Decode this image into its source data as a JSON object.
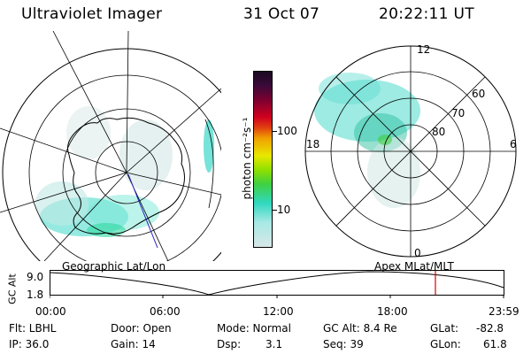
{
  "header": {
    "instrument": "Ultraviolet Imager",
    "date": "31 Oct 07",
    "time": "20:22:11 UT"
  },
  "colorbar": {
    "unit_label": "photon cm⁻²s⁻¹",
    "ticks": [
      "100",
      "10"
    ]
  },
  "polar_plot": {
    "mlt_labels": [
      "12",
      "18",
      "6",
      "0"
    ],
    "mlat_labels": [
      "60",
      "70",
      "80"
    ]
  },
  "map_captions": {
    "left": "Geographic Lat/Lon",
    "right": "Apex  MLat/MLT"
  },
  "altitude_strip": {
    "axis_label": "GC Alt",
    "y_ticks": [
      "9.0",
      "1.8"
    ],
    "time_ticks": [
      "00:00",
      "06:00",
      "12:00",
      "18:00",
      "23:59"
    ]
  },
  "info": {
    "filter": "Flt: LBHL",
    "ip": "IP: 36.0",
    "door": "Door: Open",
    "gain": "Gain: 14",
    "mode": "Mode: Normal",
    "dsp_label": "Dsp:",
    "dsp_value": "3.1",
    "gc_alt": "GC Alt: 8.4 Re",
    "seq": "Seq: 39",
    "glat_label": "GLat:",
    "glat_value": "-82.8",
    "glon_label": "GLon:",
    "glon_value": "61.8"
  },
  "colors": {
    "colorbar_top": "#1a0a20",
    "colorbar_red": "#d00020",
    "colorbar_orange": "#f0a000",
    "colorbar_yellow": "#e8e800",
    "colorbar_green": "#40d040",
    "colorbar_cyan": "#30d8c0",
    "colorbar_light": "#d8e8e8",
    "aurora_cyan": "#3cd8c8",
    "current_time_marker": "#e00000"
  }
}
